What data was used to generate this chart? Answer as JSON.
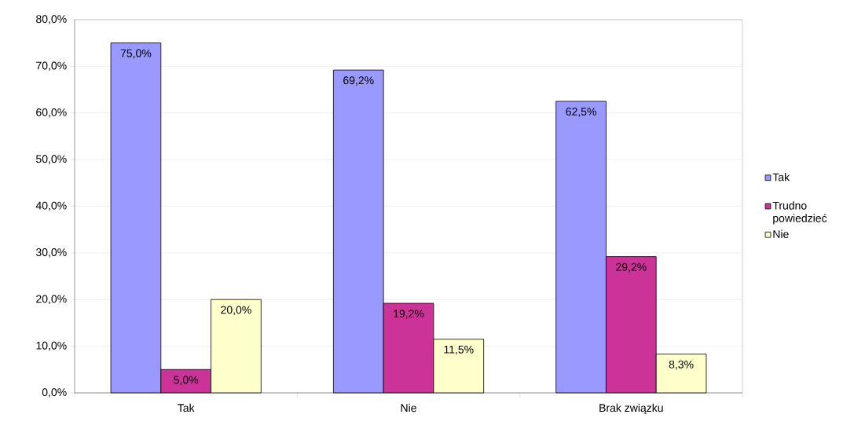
{
  "chart_data": {
    "type": "bar",
    "categories": [
      "Tak",
      "Nie",
      "Brak związku"
    ],
    "series": [
      {
        "name": "Tak",
        "color": "#9999ff",
        "values": [
          75.0,
          69.2,
          62.5
        ],
        "value_labels": [
          "75,0%",
          "69,2%",
          "62,5%"
        ]
      },
      {
        "name": "Trudno powiedzieć",
        "color": "#cc3399",
        "values": [
          5.0,
          19.2,
          29.2
        ],
        "value_labels": [
          "5,0%",
          "19,2%",
          "29,2%"
        ]
      },
      {
        "name": "Nie",
        "color": "#ffffcc",
        "values": [
          20.0,
          11.5,
          8.3
        ],
        "value_labels": [
          "20,0%",
          "11,5%",
          "8,3%"
        ]
      }
    ],
    "ylim": [
      0,
      80
    ],
    "yticks": [
      {
        "value": 0,
        "label": "0,0%"
      },
      {
        "value": 10,
        "label": "10,0%"
      },
      {
        "value": 20,
        "label": "20,0%"
      },
      {
        "value": 30,
        "label": "30,0%"
      },
      {
        "value": 40,
        "label": "40,0%"
      },
      {
        "value": 50,
        "label": "50,0%"
      },
      {
        "value": 60,
        "label": "60,0%"
      },
      {
        "value": 70,
        "label": "70,0%"
      },
      {
        "value": 80,
        "label": "80,0%"
      }
    ],
    "grid": "y",
    "legend": "right"
  }
}
